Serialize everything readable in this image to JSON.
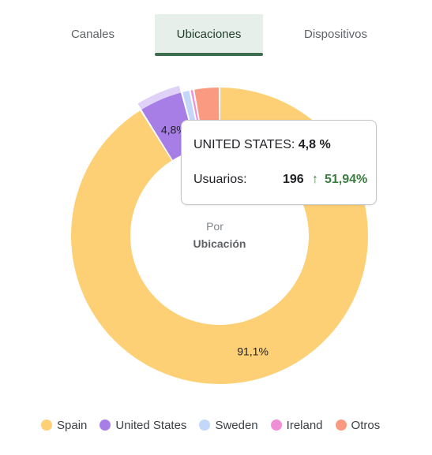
{
  "tabs": [
    {
      "label": "Canales",
      "active": false
    },
    {
      "label": "Ubicaciones",
      "active": true
    },
    {
      "label": "Dispositivos",
      "active": false
    }
  ],
  "center": {
    "line1": "Por",
    "line2": "Ubicación"
  },
  "tooltip": {
    "country": "UNITED STATES:",
    "share": "4,8 %",
    "users_label": "Usuarios:",
    "users_value": "196",
    "delta": "51,94%"
  },
  "colors": {
    "accent": "#3c6e4f",
    "delta": "#3b7d3f"
  },
  "chart_data": {
    "type": "pie",
    "donut": true,
    "categories": [
      "Spain",
      "United States",
      "Sweden",
      "Ireland",
      "Otros"
    ],
    "values": [
      91.1,
      4.8,
      0.9,
      0.4,
      2.8
    ],
    "colors": [
      "#fdd075",
      "#a77ee6",
      "#c3d7fb",
      "#f08fd8",
      "#fa9a80"
    ],
    "data_labels": [
      "91,1%",
      "4,8%",
      "",
      "",
      ""
    ],
    "highlighted": "United States",
    "legend_position": "bottom"
  }
}
